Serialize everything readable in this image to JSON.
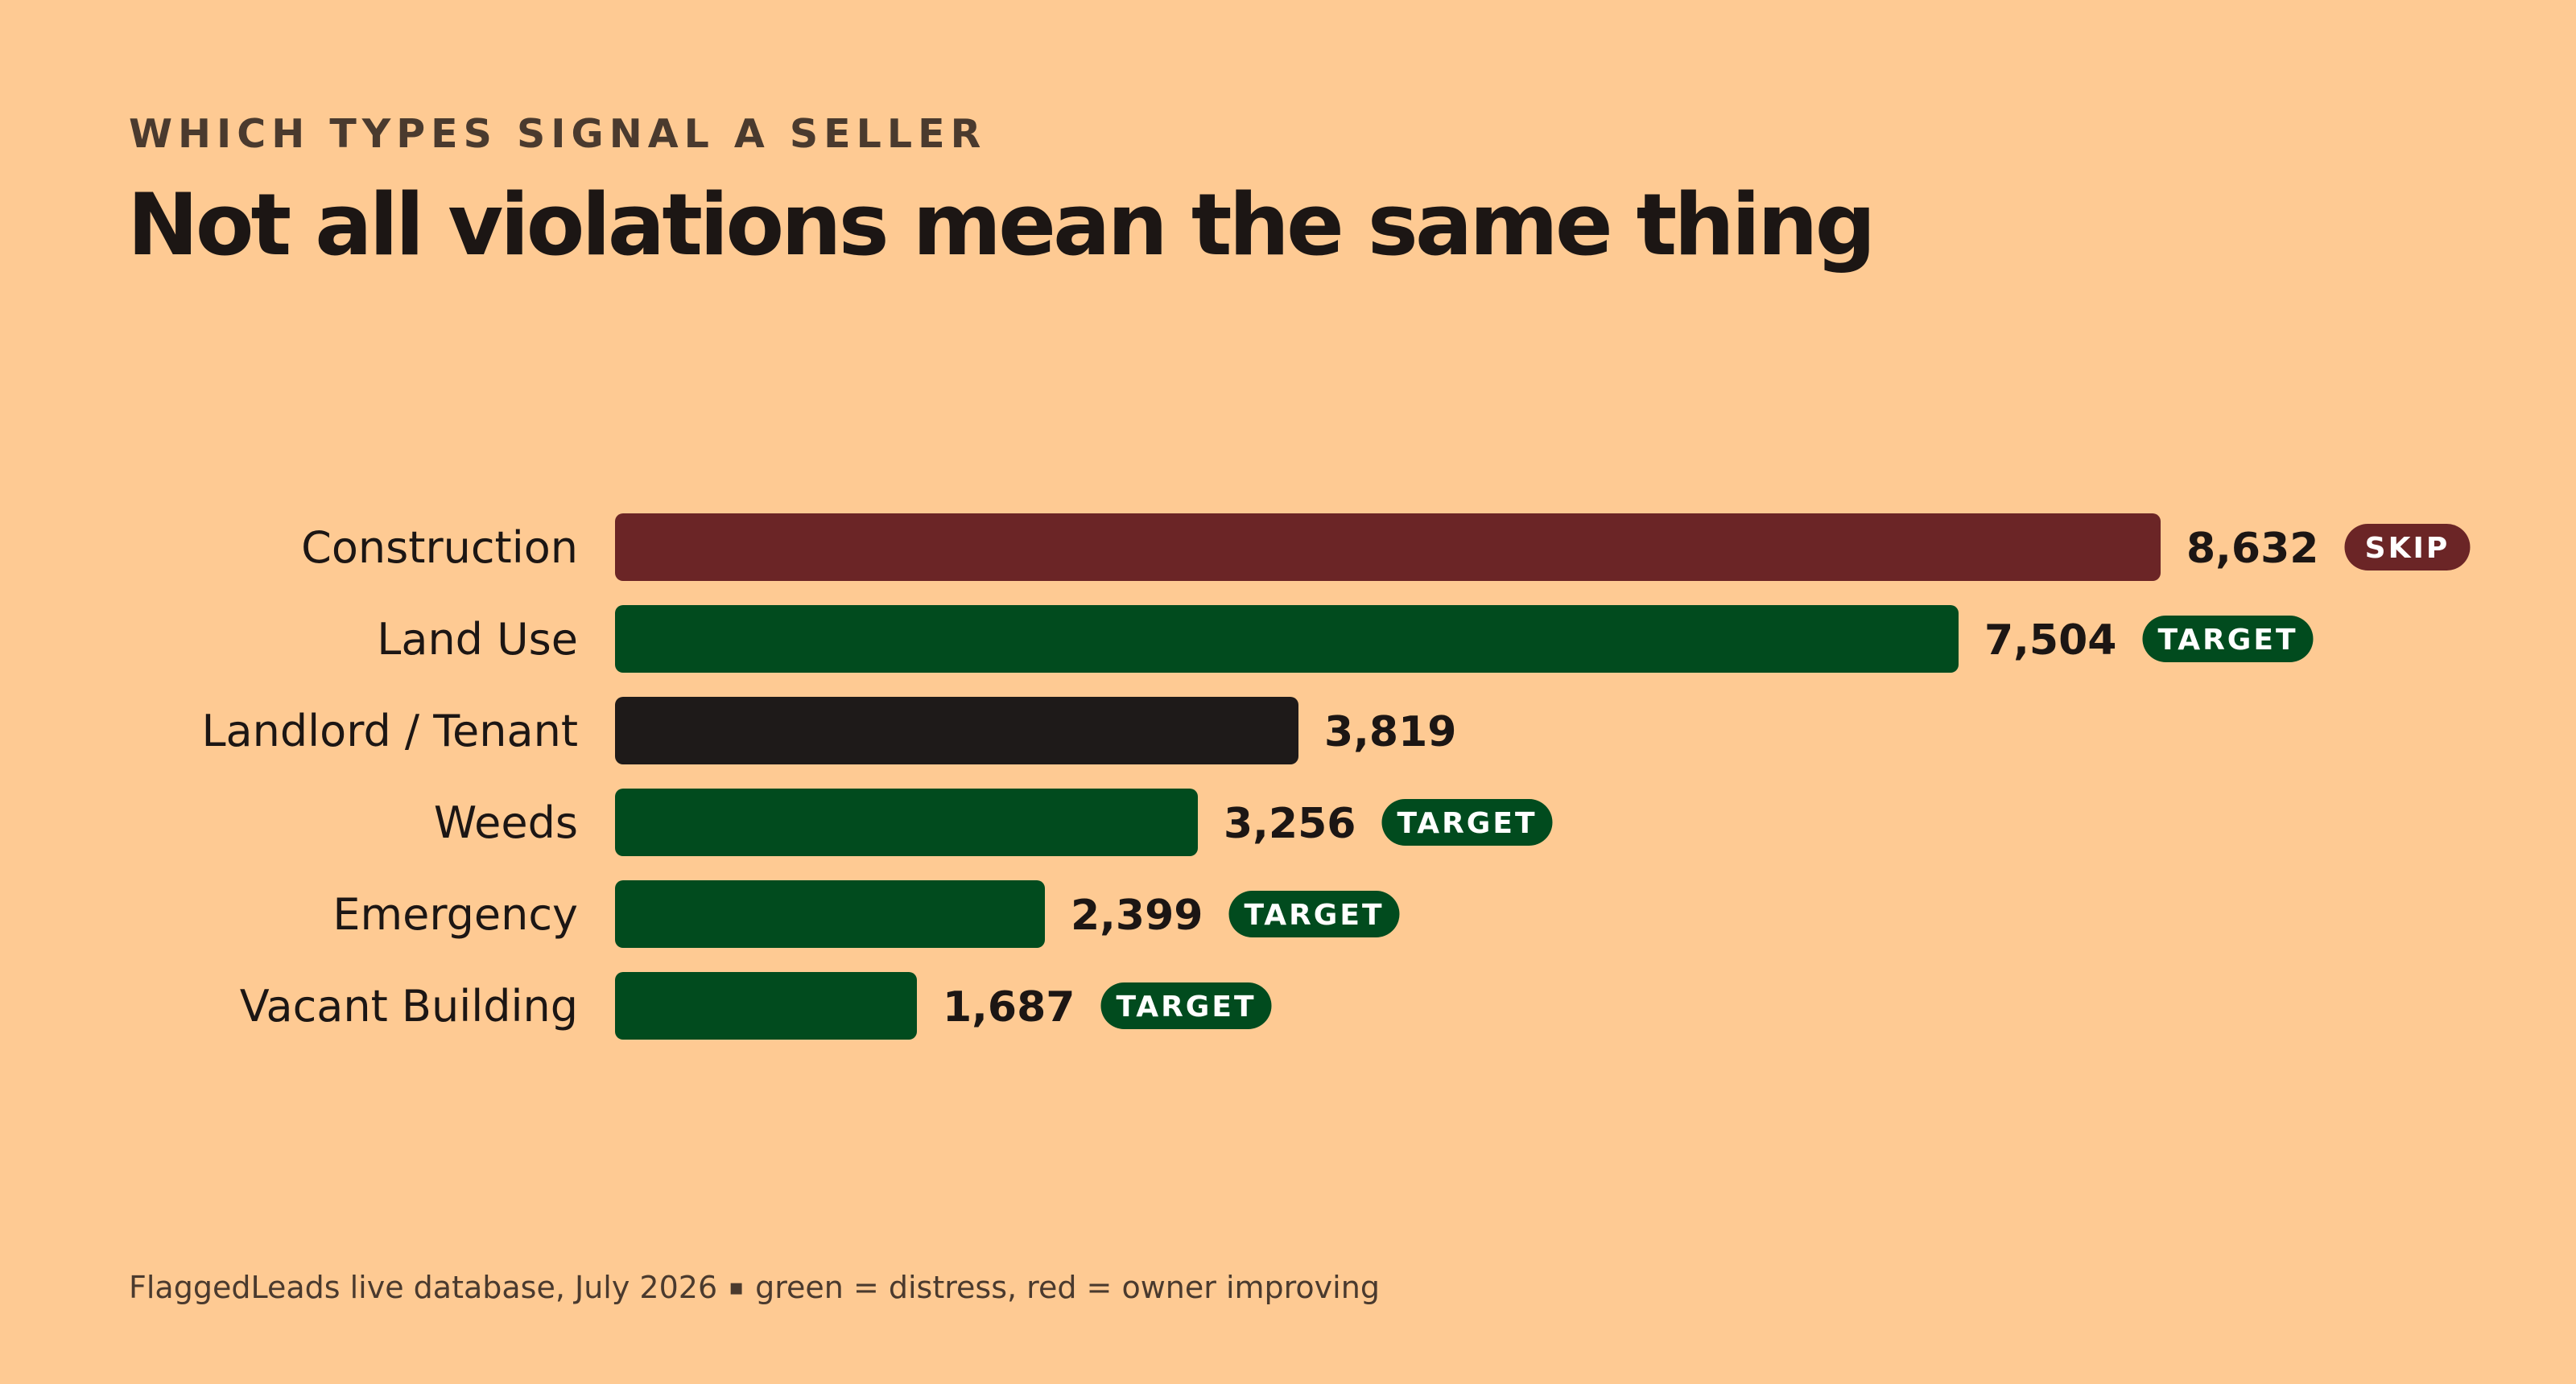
{
  "header": {
    "kicker": "WHICH TYPES SIGNAL A SELLER",
    "title": "Not all violations mean the same thing"
  },
  "footer": {
    "source": "FlaggedLeads live database, July 2026",
    "separator": "▪",
    "note": "green = distress, red = owner improving"
  },
  "colors": {
    "background": "#FECA93",
    "skip": "#6B2526",
    "target": "#014B1E",
    "neutral": "#1E1A19",
    "text": "#1C1614",
    "tag_text": "#FFFFFF"
  },
  "chart_data": {
    "type": "bar",
    "orientation": "horizontal",
    "categories": [
      "Construction",
      "Land Use",
      "Landlord / Tenant",
      "Weeds",
      "Emergency",
      "Vacant Building"
    ],
    "values": [
      8632,
      7504,
      3819,
      3256,
      2399,
      1687
    ],
    "value_labels": [
      "8,632",
      "7,504",
      "3,819",
      "3,256",
      "2,399",
      "1,687"
    ],
    "tags": [
      "SKIP",
      "TARGET",
      "",
      "TARGET",
      "TARGET",
      "TARGET"
    ],
    "bar_colors": [
      "skip",
      "target",
      "neutral",
      "target",
      "target",
      "target"
    ],
    "xlim": [
      0,
      8632
    ],
    "grid": false,
    "legend": "none"
  }
}
